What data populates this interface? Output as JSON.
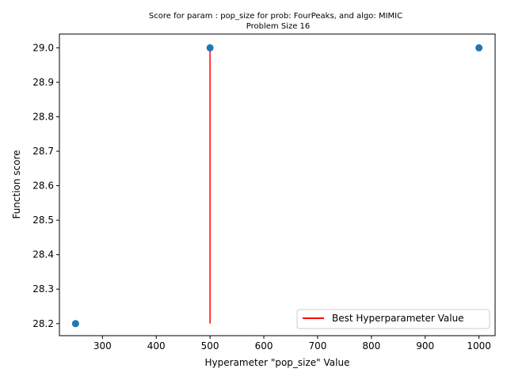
{
  "chart_data": {
    "type": "scatter",
    "title": "Score for param : pop_size for prob: FourPeaks, and algo: MIMIC",
    "subtitle": "Problem Size 16",
    "xlabel": "Hyperameter \"pop_size\" Value",
    "ylabel": "Function score",
    "xlim": [
      220,
      1030
    ],
    "ylim": [
      28.165,
      29.04
    ],
    "xticks": [
      300,
      400,
      500,
      600,
      700,
      800,
      900,
      1000
    ],
    "xtick_labels": [
      "300",
      "400",
      "500",
      "600",
      "700",
      "800",
      "900",
      "1000"
    ],
    "yticks": [
      28.2,
      28.3,
      28.4,
      28.5,
      28.6,
      28.7,
      28.8,
      28.9,
      29.0
    ],
    "ytick_labels": [
      "28.2",
      "28.3",
      "28.4",
      "28.5",
      "28.6",
      "28.7",
      "28.8",
      "28.9",
      "29.0"
    ],
    "grid": false,
    "legend_position": "bottom-right",
    "points": {
      "color": "#1f77b4",
      "x": [
        250,
        500,
        1000
      ],
      "y": [
        28.2,
        29.0,
        29.0
      ]
    },
    "best_line": {
      "name": "Best Hyperparameter Value",
      "color": "#ff0000",
      "x": 500,
      "y_from": 28.2,
      "y_to": 29.0
    }
  }
}
